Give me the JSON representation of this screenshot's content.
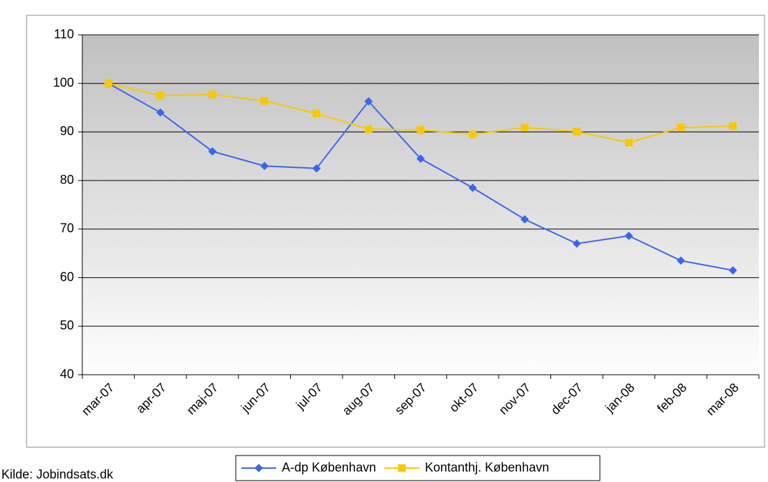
{
  "chart_data": {
    "type": "line",
    "categories": [
      "mar-07",
      "apr-07",
      "maj-07",
      "jun-07",
      "jul-07",
      "aug-07",
      "sep-07",
      "okt-07",
      "nov-07",
      "dec-07",
      "jan-08",
      "feb-08",
      "mar-08"
    ],
    "series": [
      {
        "name": "A-dp København",
        "color": "#3a66ee",
        "marker": "diamond",
        "values": [
          100,
          94,
          86,
          83,
          82.5,
          96.3,
          84.5,
          78.5,
          72,
          67,
          68.6,
          63.5,
          61.5
        ]
      },
      {
        "name": "Kontanthj. København",
        "color": "#f8c800",
        "marker": "square",
        "values": [
          100,
          97.5,
          97.7,
          96.4,
          93.8,
          90.6,
          90.4,
          89.5,
          90.9,
          90.1,
          87.8,
          90.9,
          91.2
        ]
      }
    ],
    "ylim": [
      40,
      110
    ],
    "yticks": [
      40,
      50,
      60,
      70,
      80,
      90,
      100,
      110
    ],
    "grid": true,
    "source": "Kilde: Jobindsats.dk",
    "legend": "bottom"
  }
}
